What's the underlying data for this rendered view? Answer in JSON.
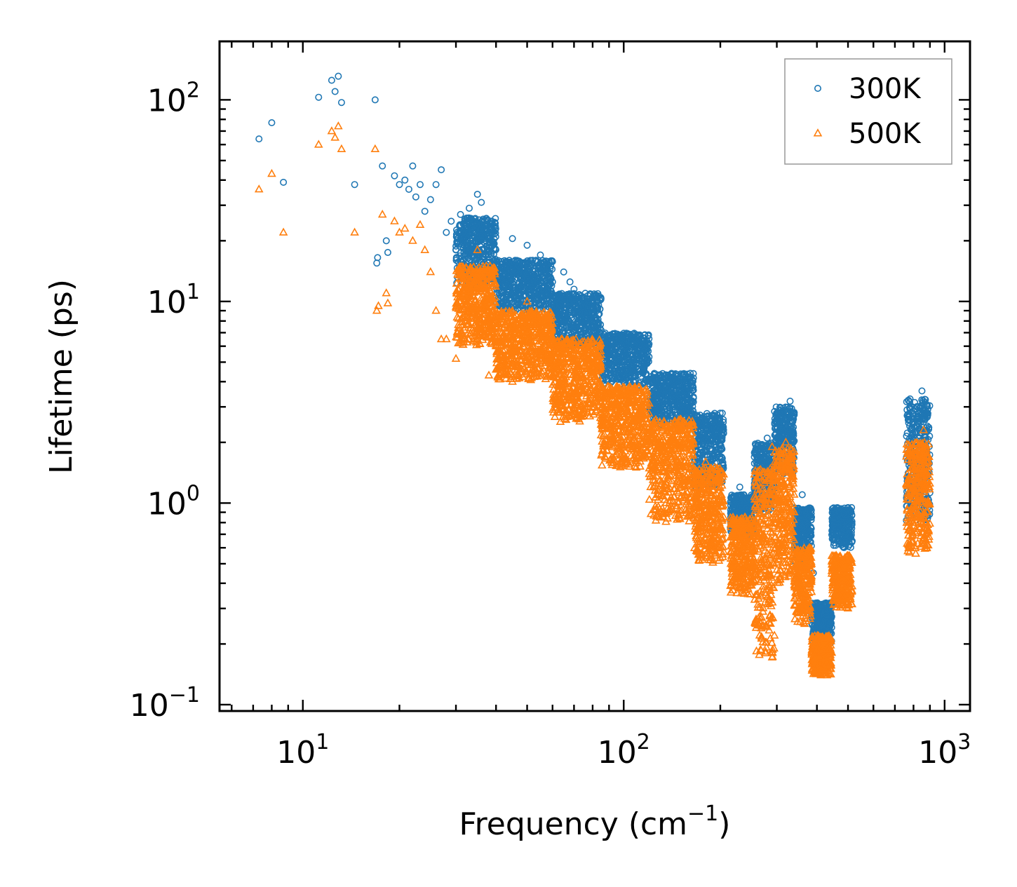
{
  "chart_data": {
    "type": "scatter",
    "xscale": "log",
    "yscale": "log",
    "xlim": [
      5.5,
      1200
    ],
    "ylim": [
      0.093,
      195
    ],
    "xlabel": "Frequency (cm",
    "xlabel_sup": "−1",
    "xlabel_end": ")",
    "ylabel": "Lifetime (ps)",
    "x_ticks": [
      {
        "value": 10,
        "base": "10",
        "exp": "1"
      },
      {
        "value": 100,
        "base": "10",
        "exp": "2"
      },
      {
        "value": 1000,
        "base": "10",
        "exp": "3"
      }
    ],
    "y_ticks": [
      {
        "value": 0.1,
        "base": "10",
        "exp": "−1"
      },
      {
        "value": 1,
        "base": "10",
        "exp": "0"
      },
      {
        "value": 10,
        "base": "10",
        "exp": "1"
      },
      {
        "value": 100,
        "base": "10",
        "exp": "2"
      }
    ],
    "legend_position": "top-right",
    "series": [
      {
        "name": "300K",
        "marker": "circle",
        "color": "#1f77b4",
        "points": [
          [
            7.3,
            64
          ],
          [
            8.0,
            77
          ],
          [
            8.7,
            39
          ],
          [
            11.2,
            103
          ],
          [
            12.3,
            125
          ],
          [
            12.6,
            110
          ],
          [
            12.9,
            131
          ],
          [
            13.2,
            97
          ],
          [
            14.5,
            38
          ],
          [
            16.8,
            100
          ],
          [
            17.0,
            15.5
          ],
          [
            17.1,
            16.5
          ],
          [
            17.7,
            47
          ],
          [
            18.2,
            20
          ],
          [
            18.4,
            17.5
          ],
          [
            19.3,
            42
          ],
          [
            20,
            38
          ],
          [
            20.8,
            40
          ],
          [
            21.4,
            36
          ],
          [
            22,
            47
          ],
          [
            22.5,
            33
          ],
          [
            23.2,
            38
          ],
          [
            24,
            28
          ],
          [
            25,
            32
          ],
          [
            26,
            38
          ],
          [
            27,
            45
          ],
          [
            28,
            22
          ],
          [
            29,
            25
          ],
          [
            30,
            18
          ],
          [
            31,
            27
          ],
          [
            32,
            20
          ],
          [
            33,
            29
          ],
          [
            34,
            15
          ],
          [
            35,
            34
          ],
          [
            36,
            31
          ],
          [
            37,
            17
          ],
          [
            40,
            14
          ],
          [
            42,
            12
          ],
          [
            45,
            20.5
          ],
          [
            48,
            13
          ],
          [
            50,
            19
          ],
          [
            52,
            16
          ],
          [
            55,
            17
          ],
          [
            58,
            11
          ],
          [
            60,
            12.5
          ],
          [
            65,
            14
          ],
          [
            68,
            12.5
          ],
          [
            70,
            11.5
          ],
          [
            80,
            8
          ],
          [
            85,
            7.2
          ],
          [
            95,
            6.0
          ],
          [
            100,
            5.0
          ],
          [
            120,
            4.1
          ],
          [
            150,
            3.2
          ],
          [
            180,
            2.5
          ],
          [
            200,
            2.4
          ],
          [
            230,
            1.2
          ],
          [
            260,
            1.05
          ],
          [
            280,
            2.1
          ],
          [
            300,
            2.4
          ],
          [
            330,
            3.2
          ],
          [
            360,
            1.1
          ],
          [
            390,
            0.45
          ],
          [
            410,
            0.3
          ],
          [
            440,
            0.32
          ],
          [
            470,
            0.9
          ],
          [
            500,
            0.95
          ],
          [
            820,
            3.0
          ],
          [
            850,
            3.6
          ],
          [
            880,
            2.8
          ]
        ],
        "bands": [
          {
            "f0": 30,
            "f1": 40,
            "lo": 12,
            "hi": 26
          },
          {
            "f0": 40,
            "f1": 60,
            "lo": 9,
            "hi": 16
          },
          {
            "f0": 60,
            "f1": 85,
            "lo": 6,
            "hi": 11
          },
          {
            "f0": 85,
            "f1": 120,
            "lo": 3.8,
            "hi": 7
          },
          {
            "f0": 120,
            "f1": 165,
            "lo": 2.4,
            "hi": 4.4
          },
          {
            "f0": 165,
            "f1": 205,
            "lo": 1.2,
            "hi": 2.8
          },
          {
            "f0": 215,
            "f1": 255,
            "lo": 0.7,
            "hi": 1.1
          },
          {
            "f0": 255,
            "f1": 295,
            "lo": 0.9,
            "hi": 2.0
          },
          {
            "f0": 295,
            "f1": 340,
            "lo": 1.4,
            "hi": 3.0
          },
          {
            "f0": 340,
            "f1": 385,
            "lo": 0.5,
            "hi": 0.95
          },
          {
            "f0": 385,
            "f1": 445,
            "lo": 0.2,
            "hi": 0.32
          },
          {
            "f0": 445,
            "f1": 515,
            "lo": 0.6,
            "hi": 0.95
          },
          {
            "f0": 760,
            "f1": 900,
            "lo": 0.8,
            "hi": 3.3
          }
        ]
      },
      {
        "name": "500K",
        "marker": "triangle",
        "color": "#ff7f0e",
        "points": [
          [
            7.3,
            36
          ],
          [
            8.0,
            43
          ],
          [
            8.7,
            22
          ],
          [
            11.2,
            60
          ],
          [
            12.3,
            70
          ],
          [
            12.6,
            65
          ],
          [
            12.9,
            74
          ],
          [
            13.2,
            57
          ],
          [
            14.5,
            22
          ],
          [
            16.8,
            57
          ],
          [
            17.0,
            9
          ],
          [
            17.2,
            9.5
          ],
          [
            17.7,
            27
          ],
          [
            18.2,
            11
          ],
          [
            18.4,
            9.8
          ],
          [
            19.3,
            25
          ],
          [
            20,
            22
          ],
          [
            20.8,
            23
          ],
          [
            22,
            20
          ],
          [
            23.2,
            24
          ],
          [
            24,
            18
          ],
          [
            25,
            14
          ],
          [
            26,
            9
          ],
          [
            27,
            6.5
          ],
          [
            28,
            6.5
          ],
          [
            30,
            5.2
          ],
          [
            32,
            8.5
          ],
          [
            35,
            18
          ],
          [
            38,
            4.3
          ],
          [
            40,
            6
          ],
          [
            45,
            4.0
          ],
          [
            50,
            10
          ],
          [
            55,
            8
          ],
          [
            60,
            6.5
          ],
          [
            70,
            5.5
          ],
          [
            90,
            3.5
          ],
          [
            110,
            3.0
          ],
          [
            150,
            2.0
          ],
          [
            180,
            1.6
          ],
          [
            200,
            1.1
          ],
          [
            220,
            0.7
          ],
          [
            260,
            0.8
          ],
          [
            290,
            1.9
          ],
          [
            320,
            2.0
          ],
          [
            340,
            0.9
          ],
          [
            360,
            0.3
          ],
          [
            400,
            0.15
          ],
          [
            430,
            0.14
          ],
          [
            460,
            0.45
          ],
          [
            500,
            0.5
          ],
          [
            800,
            1.5
          ],
          [
            860,
            2.3
          ],
          [
            880,
            0.6
          ]
        ],
        "bands": [
          {
            "f0": 30,
            "f1": 40,
            "lo": 6,
            "hi": 15
          },
          {
            "f0": 40,
            "f1": 60,
            "lo": 4,
            "hi": 9
          },
          {
            "f0": 60,
            "f1": 85,
            "lo": 2.5,
            "hi": 6.5
          },
          {
            "f0": 85,
            "f1": 120,
            "lo": 1.5,
            "hi": 3.8
          },
          {
            "f0": 120,
            "f1": 165,
            "lo": 0.8,
            "hi": 2.6
          },
          {
            "f0": 165,
            "f1": 205,
            "lo": 0.5,
            "hi": 1.5
          },
          {
            "f0": 215,
            "f1": 255,
            "lo": 0.35,
            "hi": 0.85
          },
          {
            "f0": 255,
            "f1": 295,
            "lo": 0.17,
            "hi": 1.5
          },
          {
            "f0": 295,
            "f1": 340,
            "lo": 0.4,
            "hi": 1.9
          },
          {
            "f0": 340,
            "f1": 385,
            "lo": 0.25,
            "hi": 0.6
          },
          {
            "f0": 385,
            "f1": 445,
            "lo": 0.14,
            "hi": 0.22
          },
          {
            "f0": 445,
            "f1": 515,
            "lo": 0.3,
            "hi": 0.55
          },
          {
            "f0": 760,
            "f1": 900,
            "lo": 0.55,
            "hi": 2.0
          }
        ]
      }
    ]
  }
}
